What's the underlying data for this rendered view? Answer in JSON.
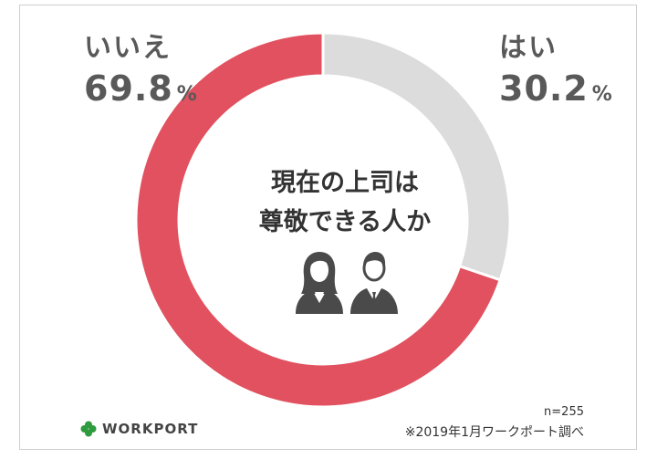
{
  "chart_data": {
    "type": "pie",
    "variant": "donut",
    "title": "現在の上司は尊敬できる人か",
    "title_lines": [
      "現在の上司は",
      "尊敬できる人か"
    ],
    "slices": [
      {
        "label": "はい",
        "value": 30.2,
        "display": "30.2",
        "color": "#dcdcdc"
      },
      {
        "label": "いいえ",
        "value": 69.8,
        "display": "69.8",
        "color": "#e1515f"
      }
    ],
    "unit": "%",
    "start": "12 o'clock, clockwise"
  },
  "sample_size": "n=255",
  "source_note": "※2019年1月ワークポート調べ",
  "brand": {
    "name": "WORKPORT",
    "icon": "clover-icon",
    "icon_color": "#2e9b3e"
  },
  "icons": [
    "woman-business-icon",
    "man-business-icon"
  ],
  "colors": {
    "yes": "#dcdcdc",
    "no": "#e1515f",
    "text": "#595959"
  }
}
